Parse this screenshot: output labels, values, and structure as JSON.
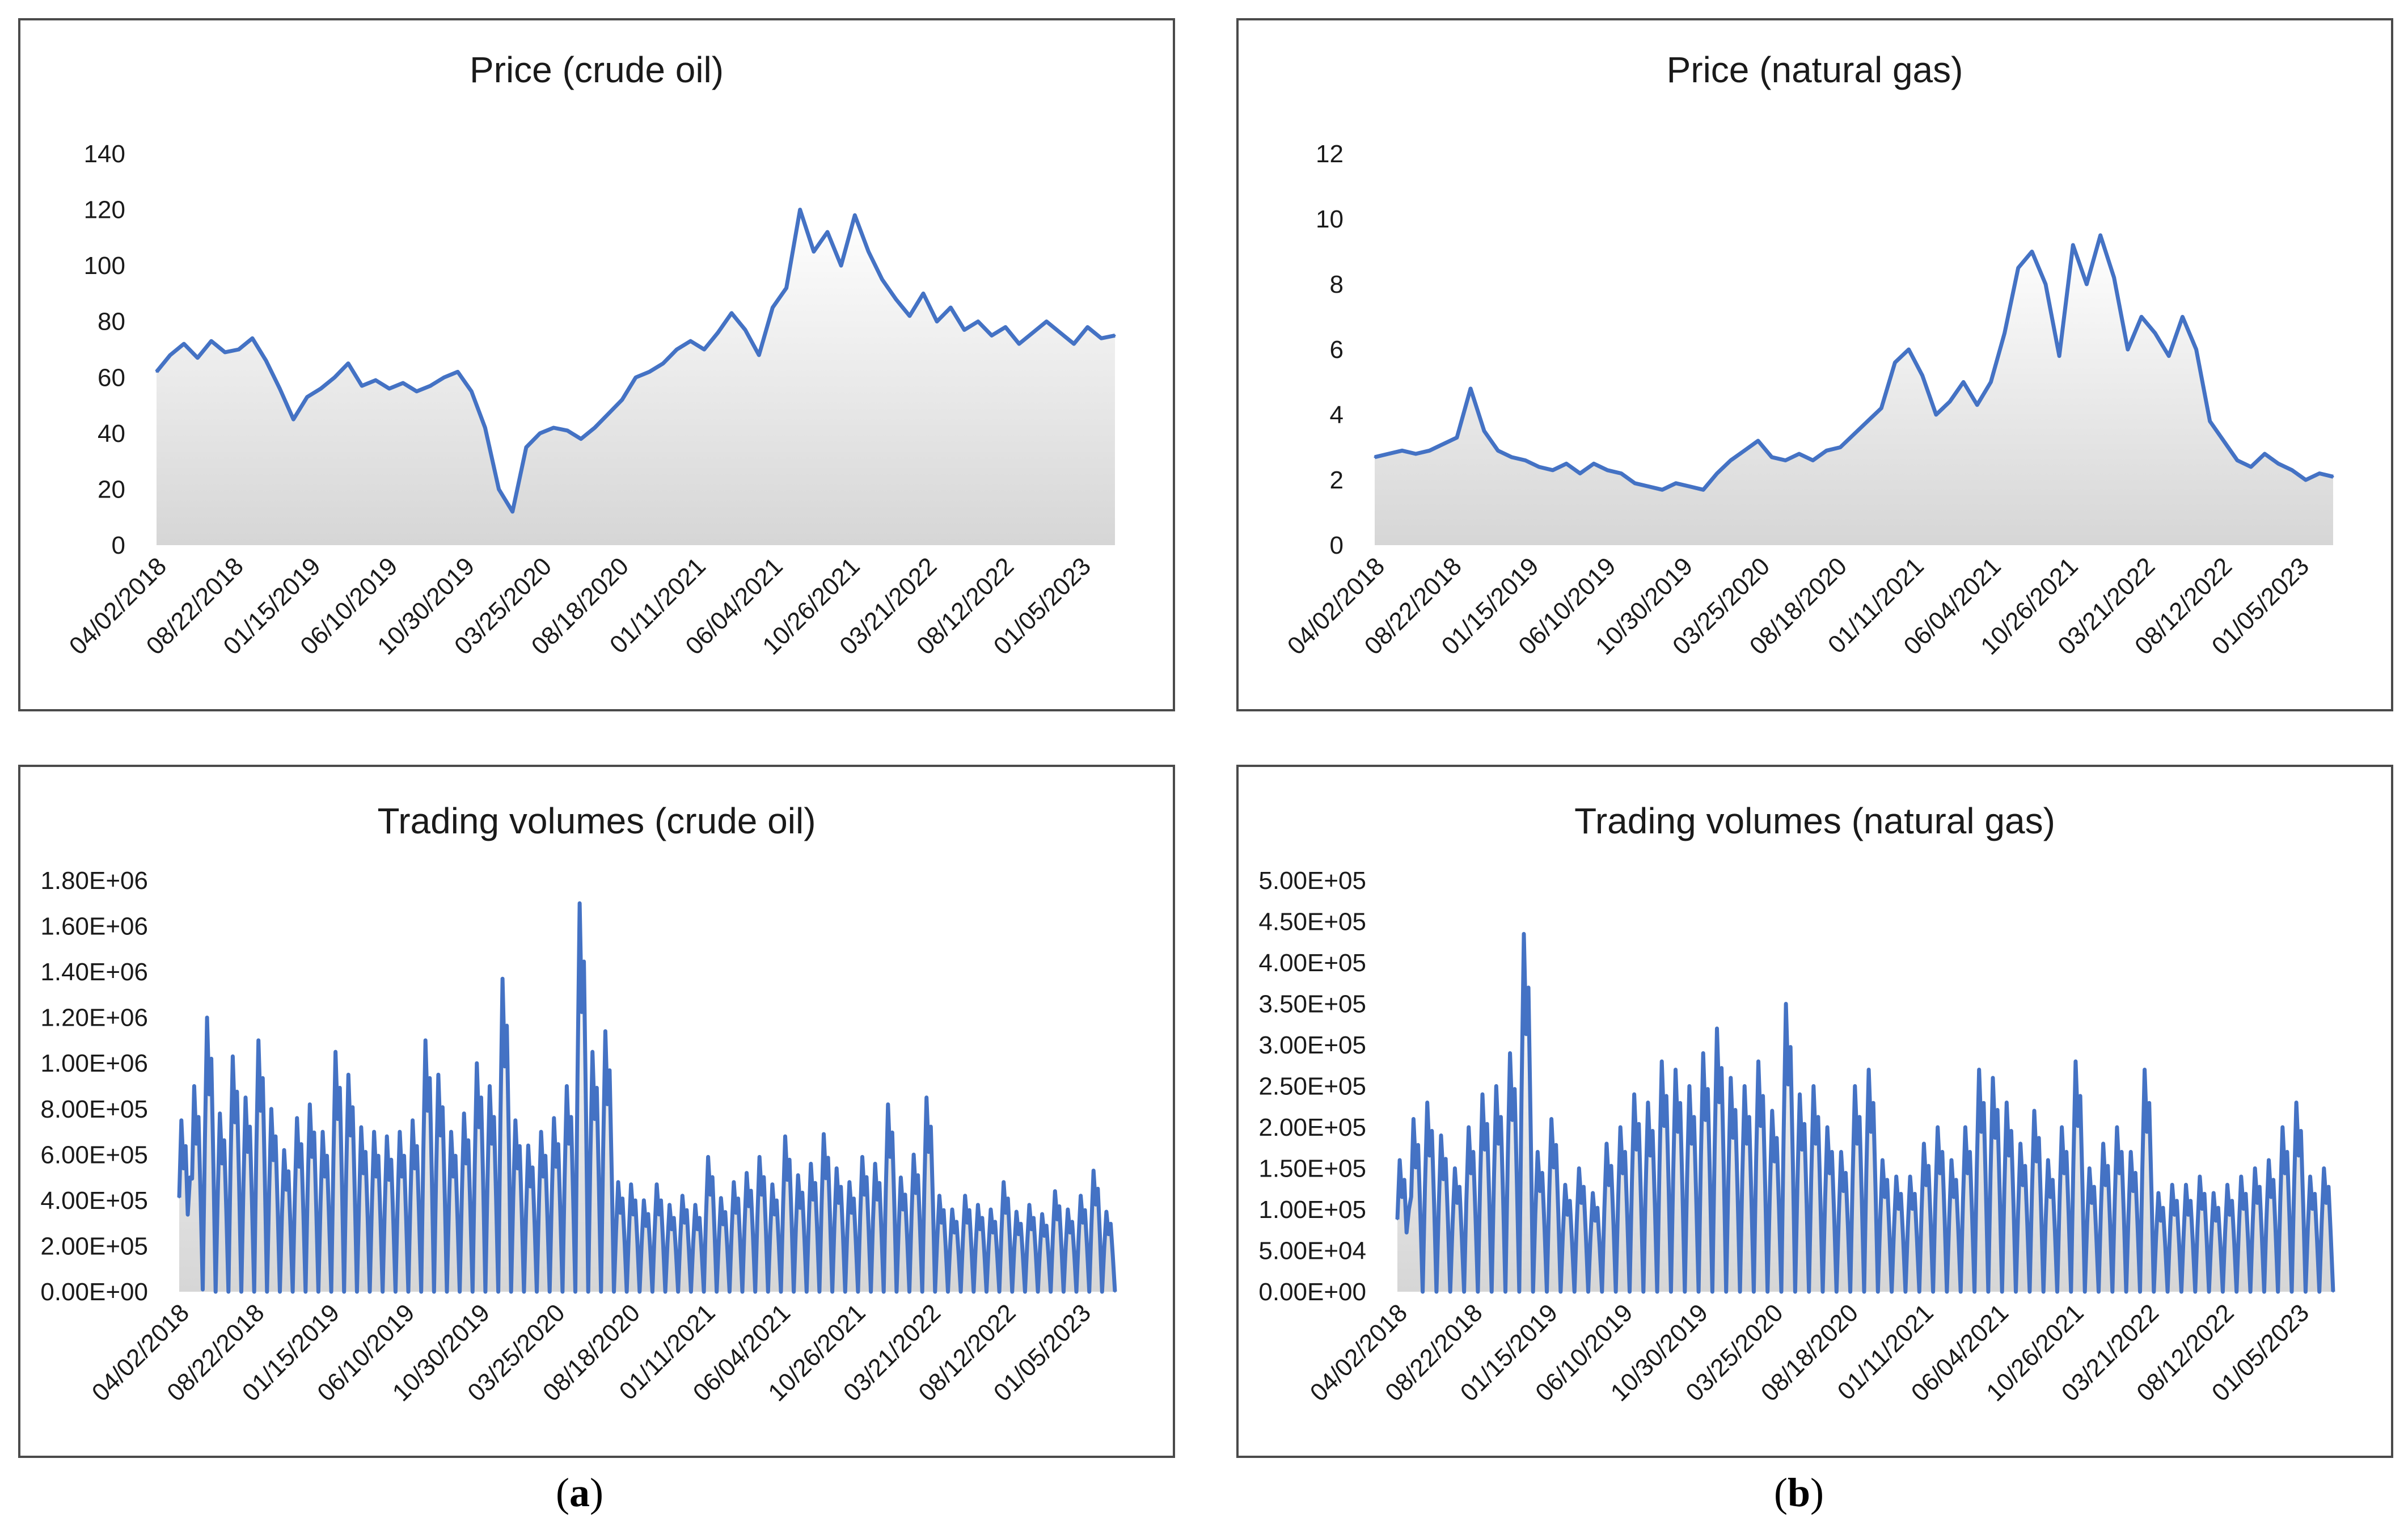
{
  "figure": {
    "label_a": "a",
    "label_b": "b"
  },
  "colors": {
    "line": "#4472c4",
    "area_top": "#ffffff",
    "area_bottom": "#d6d6d6",
    "axis_text": "#1a1a1a",
    "frame": "#4a4a4a"
  },
  "chart_data": [
    {
      "id": "crude-price",
      "type": "area",
      "title": "Price (crude oil)",
      "xlabel": "",
      "ylabel": "",
      "ylim": [
        0,
        140
      ],
      "yticks": [
        "0",
        "20",
        "40",
        "60",
        "80",
        "100",
        "120",
        "140"
      ],
      "ytick_values": [
        0,
        20,
        40,
        60,
        80,
        100,
        120,
        140
      ],
      "xticks": [
        "04/02/2018",
        "08/22/2018",
        "01/15/2019",
        "06/10/2019",
        "10/30/2019",
        "03/25/2020",
        "08/18/2020",
        "01/11/2021",
        "06/04/2021",
        "10/26/2021",
        "03/21/2022",
        "08/12/2022",
        "01/05/2023"
      ],
      "grid": false,
      "x": [
        0,
        20,
        40,
        60,
        80,
        100,
        120,
        140,
        160,
        180,
        200,
        220,
        240,
        260,
        280,
        300,
        320,
        340,
        360,
        380,
        400,
        420,
        440,
        460,
        480,
        500,
        520,
        540,
        560,
        580,
        600,
        620,
        640,
        660,
        680,
        700,
        720,
        740,
        760,
        780,
        800,
        820,
        840,
        860,
        880,
        900,
        920,
        940,
        960,
        980,
        1000,
        1020,
        1040,
        1060,
        1080,
        1100,
        1120,
        1140,
        1160,
        1180,
        1200,
        1220,
        1240,
        1260,
        1280,
        1300,
        1320,
        1340,
        1360,
        1380,
        1400
      ],
      "values": [
        62,
        68,
        72,
        67,
        73,
        69,
        70,
        74,
        66,
        56,
        45,
        53,
        56,
        60,
        65,
        57,
        59,
        56,
        58,
        55,
        57,
        60,
        62,
        55,
        42,
        20,
        12,
        35,
        40,
        42,
        41,
        38,
        42,
        47,
        52,
        60,
        62,
        65,
        70,
        73,
        70,
        76,
        83,
        77,
        68,
        85,
        92,
        120,
        105,
        112,
        100,
        118,
        105,
        95,
        88,
        82,
        90,
        80,
        85,
        77,
        80,
        75,
        78,
        72,
        76,
        80,
        76,
        72,
        78,
        74,
        75
      ],
      "series_name": "Price"
    },
    {
      "id": "gas-price",
      "type": "area",
      "title": "Price (natural gas)",
      "xlabel": "",
      "ylabel": "",
      "ylim": [
        0,
        12
      ],
      "yticks": [
        "0",
        "2",
        "4",
        "6",
        "8",
        "10",
        "12"
      ],
      "ytick_values": [
        0,
        2,
        4,
        6,
        8,
        10,
        12
      ],
      "xticks": [
        "04/02/2018",
        "08/22/2018",
        "01/15/2019",
        "06/10/2019",
        "10/30/2019",
        "03/25/2020",
        "08/18/2020",
        "01/11/2021",
        "06/04/2021",
        "10/26/2021",
        "03/21/2022",
        "08/12/2022",
        "01/05/2023"
      ],
      "grid": false,
      "x": [
        0,
        20,
        40,
        60,
        80,
        100,
        120,
        140,
        160,
        180,
        200,
        220,
        240,
        260,
        280,
        300,
        320,
        340,
        360,
        380,
        400,
        420,
        440,
        460,
        480,
        500,
        520,
        540,
        560,
        580,
        600,
        620,
        640,
        660,
        680,
        700,
        720,
        740,
        760,
        780,
        800,
        820,
        840,
        860,
        880,
        900,
        920,
        940,
        960,
        980,
        1000,
        1020,
        1040,
        1060,
        1080,
        1100,
        1120,
        1140,
        1160,
        1180,
        1200,
        1220,
        1240,
        1260,
        1280,
        1300,
        1320,
        1340,
        1360,
        1380,
        1400
      ],
      "values": [
        2.7,
        2.8,
        2.9,
        2.8,
        2.9,
        3.1,
        3.3,
        4.8,
        3.5,
        2.9,
        2.7,
        2.6,
        2.4,
        2.3,
        2.5,
        2.2,
        2.5,
        2.3,
        2.2,
        1.9,
        1.8,
        1.7,
        1.9,
        1.8,
        1.7,
        2.2,
        2.6,
        2.9,
        3.2,
        2.7,
        2.6,
        2.8,
        2.6,
        2.9,
        3.0,
        3.4,
        3.8,
        4.2,
        5.6,
        6.0,
        5.2,
        4.0,
        4.4,
        5.0,
        4.3,
        5.0,
        6.5,
        8.5,
        9.0,
        8.0,
        5.8,
        9.2,
        8.0,
        9.5,
        8.2,
        6.0,
        7.0,
        6.5,
        5.8,
        7.0,
        6.0,
        3.8,
        3.2,
        2.6,
        2.4,
        2.8,
        2.5,
        2.3,
        2.0,
        2.2,
        2.1
      ],
      "series_name": "Price"
    },
    {
      "id": "crude-volume",
      "type": "area",
      "title": "Trading volumes (crude oil)",
      "xlabel": "",
      "ylabel": "",
      "ylim": [
        0,
        1800000
      ],
      "yticks": [
        "0.00E+00",
        "2.00E+05",
        "4.00E+05",
        "6.00E+05",
        "8.00E+05",
        "1.00E+06",
        "1.20E+06",
        "1.40E+06",
        "1.60E+06",
        "1.80E+06"
      ],
      "ytick_values": [
        0,
        200000,
        400000,
        600000,
        800000,
        1000000,
        1200000,
        1400000,
        1600000,
        1800000
      ],
      "xticks": [
        "04/02/2018",
        "08/22/2018",
        "01/15/2019",
        "06/10/2019",
        "10/30/2019",
        "03/25/2020",
        "08/18/2020",
        "01/11/2021",
        "06/04/2021",
        "10/26/2021",
        "03/21/2022",
        "08/12/2022",
        "01/05/2023"
      ],
      "grid": false,
      "peaks": [
        750000,
        900000,
        1200000,
        780000,
        1030000,
        850000,
        1100000,
        800000,
        620000,
        760000,
        820000,
        700000,
        1050000,
        950000,
        720000,
        700000,
        680000,
        700000,
        750000,
        1100000,
        950000,
        700000,
        780000,
        1000000,
        900000,
        1370000,
        750000,
        640000,
        700000,
        760000,
        900000,
        1700000,
        1050000,
        1140000,
        480000,
        470000,
        400000,
        470000,
        380000,
        420000,
        380000,
        590000,
        410000,
        480000,
        520000,
        590000,
        470000,
        680000,
        510000,
        560000,
        690000,
        540000,
        480000,
        590000,
        560000,
        820000,
        500000,
        600000,
        850000,
        420000,
        360000,
        420000,
        380000,
        360000,
        480000,
        350000,
        380000,
        340000,
        440000,
        360000,
        420000,
        530000,
        350000
      ],
      "troughs": [
        500000,
        10000,
        0,
        0,
        0,
        0,
        0,
        0,
        0,
        0,
        0,
        0,
        0,
        0,
        0,
        0,
        0,
        0,
        0,
        0,
        0,
        0,
        0,
        0,
        0,
        0,
        0,
        0,
        0,
        0,
        0,
        0,
        0,
        0,
        0,
        0,
        0,
        0,
        0,
        0,
        0,
        0,
        0,
        0,
        0,
        0,
        0,
        0,
        0,
        0,
        0,
        0,
        0,
        0,
        0,
        0,
        0,
        0,
        0,
        0,
        0,
        0,
        0,
        0,
        0,
        0,
        0,
        0,
        0,
        0,
        0,
        0,
        0
      ],
      "series_name": "Volume"
    },
    {
      "id": "gas-volume",
      "type": "area",
      "title": "Trading volumes (natural gas)",
      "xlabel": "",
      "ylabel": "",
      "ylim": [
        0,
        500000
      ],
      "yticks": [
        "0.00E+00",
        "5.00E+04",
        "1.00E+05",
        "1.50E+05",
        "2.00E+05",
        "2.50E+05",
        "3.00E+05",
        "3.50E+05",
        "4.00E+05",
        "4.50E+05",
        "5.00E+05"
      ],
      "ytick_values": [
        0,
        50000,
        100000,
        150000,
        200000,
        250000,
        300000,
        350000,
        400000,
        450000,
        500000
      ],
      "xticks": [
        "04/02/2018",
        "08/22/2018",
        "01/15/2019",
        "06/10/2019",
        "10/30/2019",
        "03/25/2020",
        "08/18/2020",
        "01/11/2021",
        "06/04/2021",
        "10/26/2021",
        "03/21/2022",
        "08/12/2022",
        "01/05/2023"
      ],
      "grid": false,
      "peaks": [
        160000,
        210000,
        230000,
        190000,
        150000,
        200000,
        240000,
        250000,
        290000,
        435000,
        170000,
        210000,
        130000,
        150000,
        120000,
        180000,
        200000,
        240000,
        230000,
        280000,
        270000,
        250000,
        290000,
        320000,
        260000,
        250000,
        280000,
        220000,
        350000,
        240000,
        250000,
        200000,
        170000,
        250000,
        270000,
        160000,
        140000,
        140000,
        180000,
        200000,
        160000,
        200000,
        270000,
        260000,
        230000,
        180000,
        220000,
        160000,
        200000,
        280000,
        150000,
        180000,
        200000,
        170000,
        270000,
        120000,
        130000,
        130000,
        140000,
        120000,
        130000,
        140000,
        150000,
        160000,
        200000,
        230000,
        140000,
        150000
      ],
      "troughs": [
        100000,
        0,
        0,
        0,
        0,
        0,
        0,
        0,
        0,
        0,
        0,
        0,
        0,
        0,
        0,
        0,
        0,
        0,
        0,
        0,
        0,
        0,
        0,
        0,
        0,
        0,
        0,
        0,
        0,
        0,
        0,
        0,
        0,
        0,
        0,
        0,
        0,
        0,
        0,
        0,
        0,
        0,
        0,
        0,
        0,
        0,
        0,
        0,
        0,
        0,
        0,
        0,
        0,
        0,
        0,
        0,
        0,
        0,
        0,
        0,
        0,
        0,
        0,
        0,
        0,
        0,
        0,
        0
      ],
      "series_name": "Volume"
    }
  ]
}
